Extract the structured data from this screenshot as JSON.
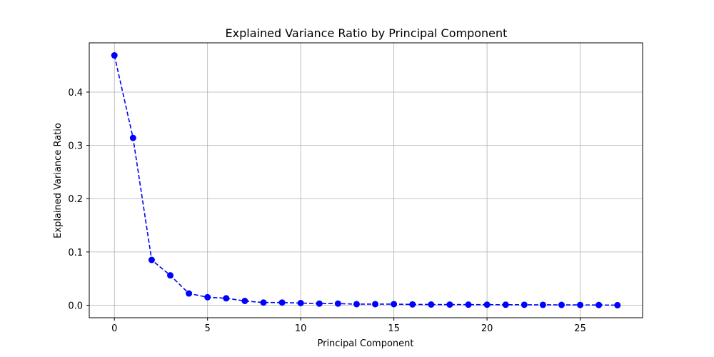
{
  "chart_data": {
    "type": "line",
    "title": "Explained Variance Ratio by Principal Component",
    "xlabel": "Principal Component",
    "ylabel": "Explained Variance Ratio",
    "xlim": [
      -1.35,
      28.35
    ],
    "ylim": [
      -0.0235,
      0.4925
    ],
    "xticks": [
      0,
      5,
      10,
      15,
      20,
      25
    ],
    "yticks": [
      0.0,
      0.1,
      0.2,
      0.3,
      0.4
    ],
    "ytick_labels": [
      "0.0",
      "0.1",
      "0.2",
      "0.3",
      "0.4"
    ],
    "grid": true,
    "series": [
      {
        "color": "#0000ff",
        "line_style": "dashed",
        "marker": "circle",
        "x": [
          0,
          1,
          2,
          3,
          4,
          5,
          6,
          7,
          8,
          9,
          10,
          11,
          12,
          13,
          14,
          15,
          16,
          17,
          18,
          19,
          20,
          21,
          22,
          23,
          24,
          25,
          26,
          27
        ],
        "y": [
          0.469,
          0.314,
          0.085,
          0.056,
          0.022,
          0.015,
          0.013,
          0.008,
          0.005,
          0.005,
          0.004,
          0.003,
          0.003,
          0.002,
          0.002,
          0.002,
          0.0015,
          0.0013,
          0.0012,
          0.0011,
          0.001,
          0.0009,
          0.0008,
          0.0007,
          0.0006,
          0.0005,
          0.0004,
          0.0001
        ]
      }
    ]
  }
}
